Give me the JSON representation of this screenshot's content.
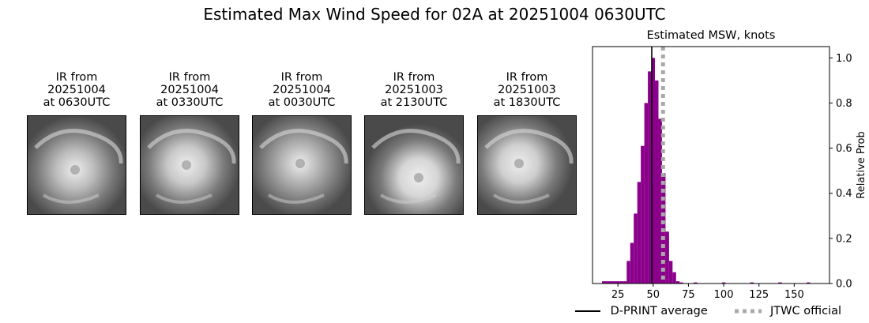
{
  "title": "Estimated Max Wind Speed for 02A at 20251004 0630UTC",
  "ir_panels": [
    {
      "line1": "IR from",
      "line2": "20251004",
      "line3": "at 0630UTC"
    },
    {
      "line1": "IR from",
      "line2": "20251004",
      "line3": "at 0330UTC"
    },
    {
      "line1": "IR from",
      "line2": "20251004",
      "line3": "at 0030UTC"
    },
    {
      "line1": "IR from",
      "line2": "20251003",
      "line3": "at 2130UTC"
    },
    {
      "line1": "IR from",
      "line2": "20251003",
      "line3": "at 1830UTC"
    }
  ],
  "chart_data": {
    "type": "bar",
    "title": "Estimated MSW, knots",
    "xlabel": "",
    "ylabel": "Relative Prob",
    "xlim": [
      7,
      175
    ],
    "ylim": [
      0,
      1.05
    ],
    "xticks": [
      25,
      50,
      75,
      100,
      125,
      150
    ],
    "yticks": [
      0.0,
      0.2,
      0.4,
      0.6,
      0.8,
      1.0
    ],
    "bin_width": 2.5,
    "bars": [
      {
        "x": 15,
        "value": 0.01
      },
      {
        "x": 17.5,
        "value": 0.01
      },
      {
        "x": 20,
        "value": 0.01
      },
      {
        "x": 22.5,
        "value": 0.01
      },
      {
        "x": 25,
        "value": 0.01
      },
      {
        "x": 27.5,
        "value": 0.01
      },
      {
        "x": 30,
        "value": 0.01
      },
      {
        "x": 32.5,
        "value": 0.1
      },
      {
        "x": 35,
        "value": 0.18
      },
      {
        "x": 37.5,
        "value": 0.31
      },
      {
        "x": 40,
        "value": 0.45
      },
      {
        "x": 42.5,
        "value": 0.61
      },
      {
        "x": 45,
        "value": 0.8
      },
      {
        "x": 47.5,
        "value": 0.94
      },
      {
        "x": 50,
        "value": 1.0
      },
      {
        "x": 52.5,
        "value": 0.9
      },
      {
        "x": 55,
        "value": 0.73
      },
      {
        "x": 57.5,
        "value": 0.49
      },
      {
        "x": 60,
        "value": 0.23
      },
      {
        "x": 62.5,
        "value": 0.1
      },
      {
        "x": 65,
        "value": 0.05
      },
      {
        "x": 67.5,
        "value": 0.01
      },
      {
        "x": 70,
        "value": 0.005
      },
      {
        "x": 80,
        "value": 0.005
      },
      {
        "x": 100,
        "value": 0.005
      },
      {
        "x": 120,
        "value": 0.005
      },
      {
        "x": 140,
        "value": 0.005
      },
      {
        "x": 160,
        "value": 0.005
      }
    ],
    "bar_color": "#8b008b",
    "dprint_average": 49,
    "jtwc_official": 57,
    "legend": [
      {
        "label": "D-PRINT average",
        "style": "solid",
        "color": "#000000"
      },
      {
        "label": "JTWC official",
        "style": "dotted",
        "color": "#a9a9a9"
      }
    ],
    "legend_position": "bottom"
  }
}
